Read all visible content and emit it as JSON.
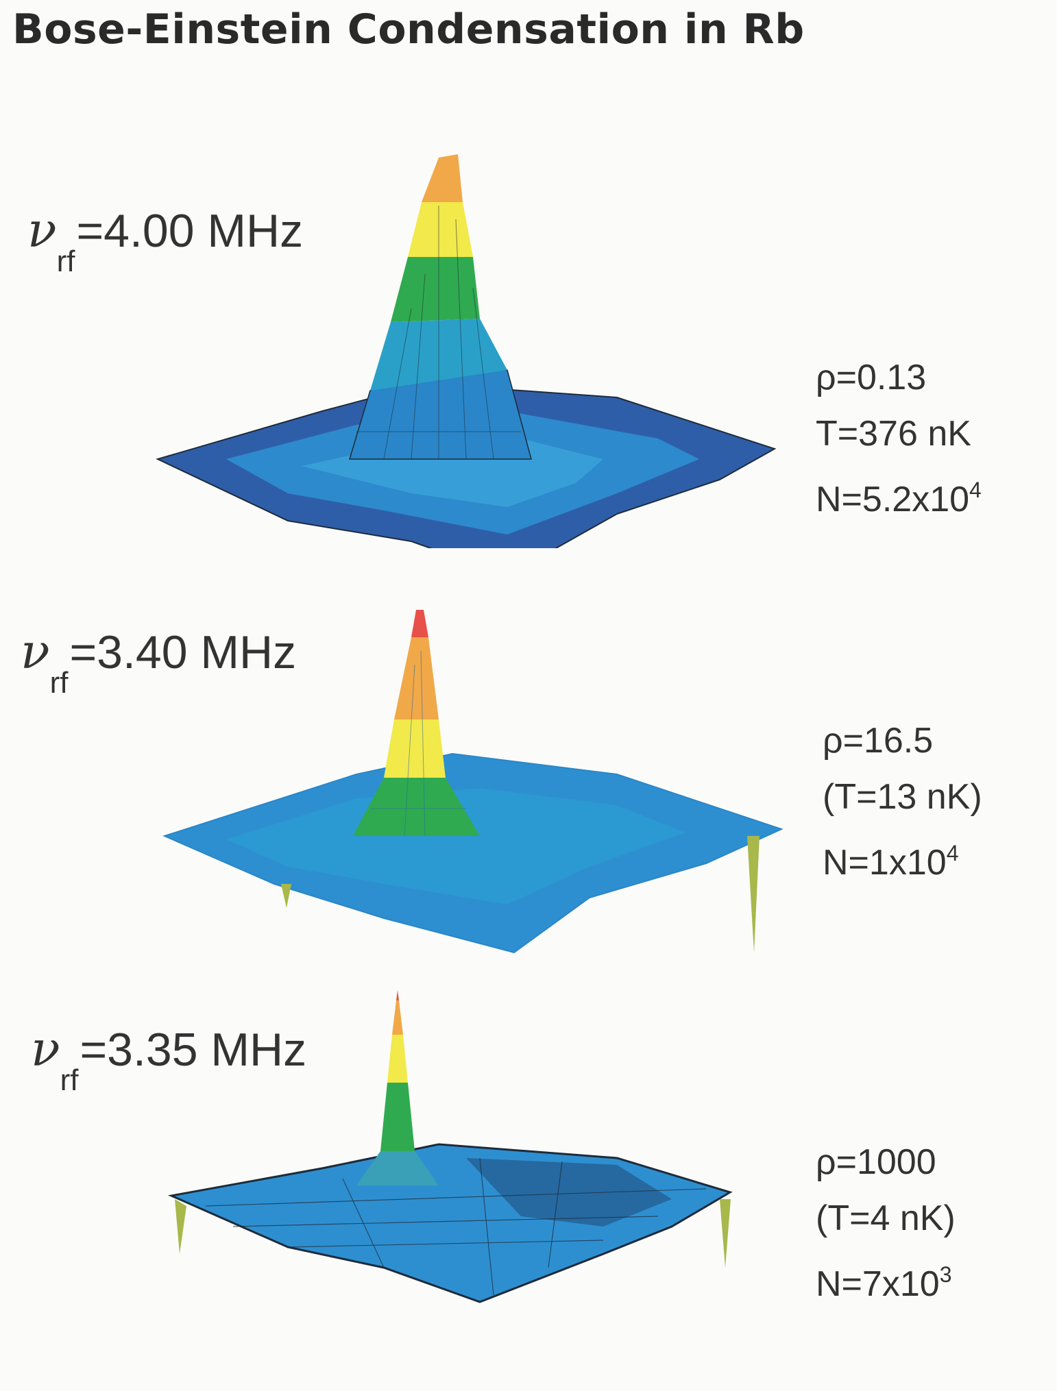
{
  "title": "Bose-Einstein Condensation in Rb",
  "panels": [
    {
      "freq_symbol": "ν",
      "freq_sub": "rf",
      "freq_value": "=4.00 MHz",
      "rho": "ρ=0.13",
      "temp": "T=376 nK",
      "n_base": "N=5.2x10",
      "n_exp": "4",
      "peak_shape": "broad-thermal-plus-condensate"
    },
    {
      "freq_symbol": "ν",
      "freq_sub": "rf",
      "freq_value": "=3.40 MHz",
      "rho": "ρ=16.5",
      "temp": "(T=13 nK)",
      "n_base": "N=1x10",
      "n_exp": "4",
      "peak_shape": "sharp-condensate"
    },
    {
      "freq_symbol": "ν",
      "freq_sub": "rf",
      "freq_value": "=3.35 MHz",
      "rho": "ρ=1000",
      "temp": "(T=4 nK)",
      "n_base": "N=7x10",
      "n_exp": "3",
      "peak_shape": "pure-condensate-spike"
    }
  ],
  "colors": {
    "background": "#fbfbf9",
    "surface_dark": "#2f5ea8",
    "surface_base": "#2e8fd0",
    "band_teal": "#2aa0b8",
    "band_green": "#2faa50",
    "band_lime": "#8fd048",
    "band_yellow": "#f2e94a",
    "band_orange": "#f0a848",
    "band_red": "#e8504a",
    "mesh": "#1d2b3a"
  }
}
